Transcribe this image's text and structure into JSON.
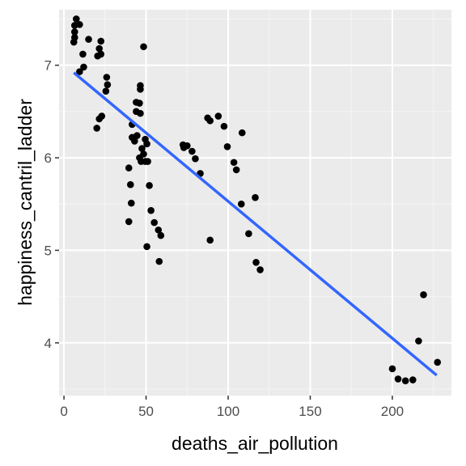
{
  "chart_data": {
    "type": "scatter",
    "title": "",
    "xlabel": "deaths_air_pollution",
    "ylabel": "happiness_cantril_ladder",
    "xlim": [
      -3,
      236
    ],
    "ylim": [
      3.43,
      7.6
    ],
    "x_ticks": [
      0,
      50,
      100,
      150,
      200
    ],
    "y_ticks": [
      4,
      5,
      6,
      7
    ],
    "x_tick_labels": [
      "0",
      "50",
      "100",
      "150",
      "200"
    ],
    "y_tick_labels": [
      "4",
      "5",
      "6",
      "7"
    ],
    "grid": true,
    "legend": "none",
    "colors": {
      "panel_background": "#ebebeb",
      "grid_major": "#ffffff",
      "grid_minor": "#f5f5f5",
      "points": "#000000",
      "trend_line": "#3366ff",
      "axis_tick": "#333333"
    },
    "points": [
      [
        7.5,
        7.5
      ],
      [
        6.5,
        7.43
      ],
      [
        6.5,
        7.36
      ],
      [
        6.5,
        7.3
      ],
      [
        6.0,
        7.25
      ],
      [
        9.5,
        7.44
      ],
      [
        15.0,
        7.28
      ],
      [
        22.5,
        7.26
      ],
      [
        21.5,
        7.18
      ],
      [
        22.5,
        7.12
      ],
      [
        20.5,
        7.1
      ],
      [
        11.5,
        7.12
      ],
      [
        12.0,
        6.98
      ],
      [
        9.5,
        6.93
      ],
      [
        48.5,
        7.2
      ],
      [
        26.0,
        6.87
      ],
      [
        26.5,
        6.79
      ],
      [
        25.5,
        6.72
      ],
      [
        46.5,
        6.78
      ],
      [
        46.5,
        6.74
      ],
      [
        44.0,
        6.6
      ],
      [
        46.0,
        6.59
      ],
      [
        44.0,
        6.5
      ],
      [
        46.5,
        6.48
      ],
      [
        23.0,
        6.45
      ],
      [
        21.5,
        6.42
      ],
      [
        20.0,
        6.32
      ],
      [
        41.5,
        6.36
      ],
      [
        44.5,
        6.24
      ],
      [
        41.5,
        6.22
      ],
      [
        43.0,
        6.18
      ],
      [
        49.5,
        6.2
      ],
      [
        50.5,
        6.15
      ],
      [
        47.5,
        6.1
      ],
      [
        48.5,
        6.04
      ],
      [
        46.0,
        6.0
      ],
      [
        47.0,
        5.96
      ],
      [
        49.5,
        5.96
      ],
      [
        51.0,
        5.96
      ],
      [
        39.5,
        5.89
      ],
      [
        40.5,
        5.71
      ],
      [
        41.0,
        5.51
      ],
      [
        39.5,
        5.31
      ],
      [
        52.0,
        5.7
      ],
      [
        53.0,
        5.43
      ],
      [
        55.0,
        5.3
      ],
      [
        57.5,
        5.22
      ],
      [
        59.0,
        5.16
      ],
      [
        50.5,
        5.04
      ],
      [
        58.0,
        4.88
      ],
      [
        87.5,
        6.43
      ],
      [
        89.0,
        6.4
      ],
      [
        94.0,
        6.45
      ],
      [
        97.5,
        6.34
      ],
      [
        108.5,
        6.27
      ],
      [
        72.5,
        6.14
      ],
      [
        75.0,
        6.13
      ],
      [
        73.0,
        6.11
      ],
      [
        78.0,
        6.07
      ],
      [
        80.0,
        5.99
      ],
      [
        99.5,
        6.12
      ],
      [
        103.5,
        5.95
      ],
      [
        105.0,
        5.87
      ],
      [
        83.0,
        5.83
      ],
      [
        108.0,
        5.5
      ],
      [
        116.5,
        5.57
      ],
      [
        112.5,
        5.18
      ],
      [
        117.0,
        4.87
      ],
      [
        119.5,
        4.79
      ],
      [
        89.0,
        5.11
      ],
      [
        200.0,
        3.72
      ],
      [
        203.5,
        3.61
      ],
      [
        208.0,
        3.59
      ],
      [
        212.5,
        3.6
      ],
      [
        216.0,
        4.02
      ],
      [
        219.0,
        4.52
      ],
      [
        227.5,
        3.79
      ]
    ],
    "trend_line": {
      "method": "lm",
      "x": [
        6,
        227
      ],
      "y": [
        6.92,
        3.65
      ]
    }
  }
}
